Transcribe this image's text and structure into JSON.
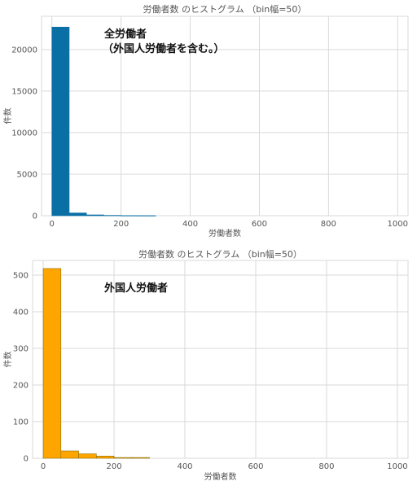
{
  "chart_data": [
    {
      "type": "bar",
      "title": "労働者数 のヒストグラム （bin幅=50）",
      "xlabel": "労働者数",
      "ylabel": "件数",
      "xlim": [
        -30,
        1030
      ],
      "ylim": [
        0,
        24000
      ],
      "xticks": [
        "0",
        "200",
        "400",
        "600",
        "800",
        "1000"
      ],
      "yticks": [
        "0",
        "5000",
        "10000",
        "15000",
        "20000"
      ],
      "bins": [
        [
          0,
          50
        ],
        [
          50,
          100
        ],
        [
          100,
          150
        ],
        [
          150,
          200
        ],
        [
          200,
          250
        ],
        [
          250,
          300
        ]
      ],
      "values": [
        22700,
        330,
        100,
        40,
        15,
        10
      ],
      "bar_color": "#0a6fa4",
      "bar_edge": "#0a6fa4",
      "annotation": [
        "全労働者",
        "（外国人労働者を含む。）"
      ],
      "grid": true
    },
    {
      "type": "bar",
      "title": "労働者数 のヒストグラム （bin幅=50）",
      "xlabel": "労働者数",
      "ylabel": "件数",
      "xlim": [
        -30,
        1030
      ],
      "ylim": [
        0,
        540
      ],
      "xticks": [
        "0",
        "200",
        "400",
        "600",
        "800",
        "1000"
      ],
      "yticks": [
        "0",
        "100",
        "200",
        "300",
        "400",
        "500"
      ],
      "bins": [
        [
          0,
          50
        ],
        [
          50,
          100
        ],
        [
          100,
          150
        ],
        [
          150,
          200
        ],
        [
          200,
          250
        ],
        [
          250,
          300
        ]
      ],
      "values": [
        518,
        20,
        12,
        6,
        2,
        2
      ],
      "bar_color": "#ffa500",
      "bar_edge": "#8a6d00",
      "annotation": [
        "外国人労働者"
      ],
      "grid": true
    }
  ]
}
